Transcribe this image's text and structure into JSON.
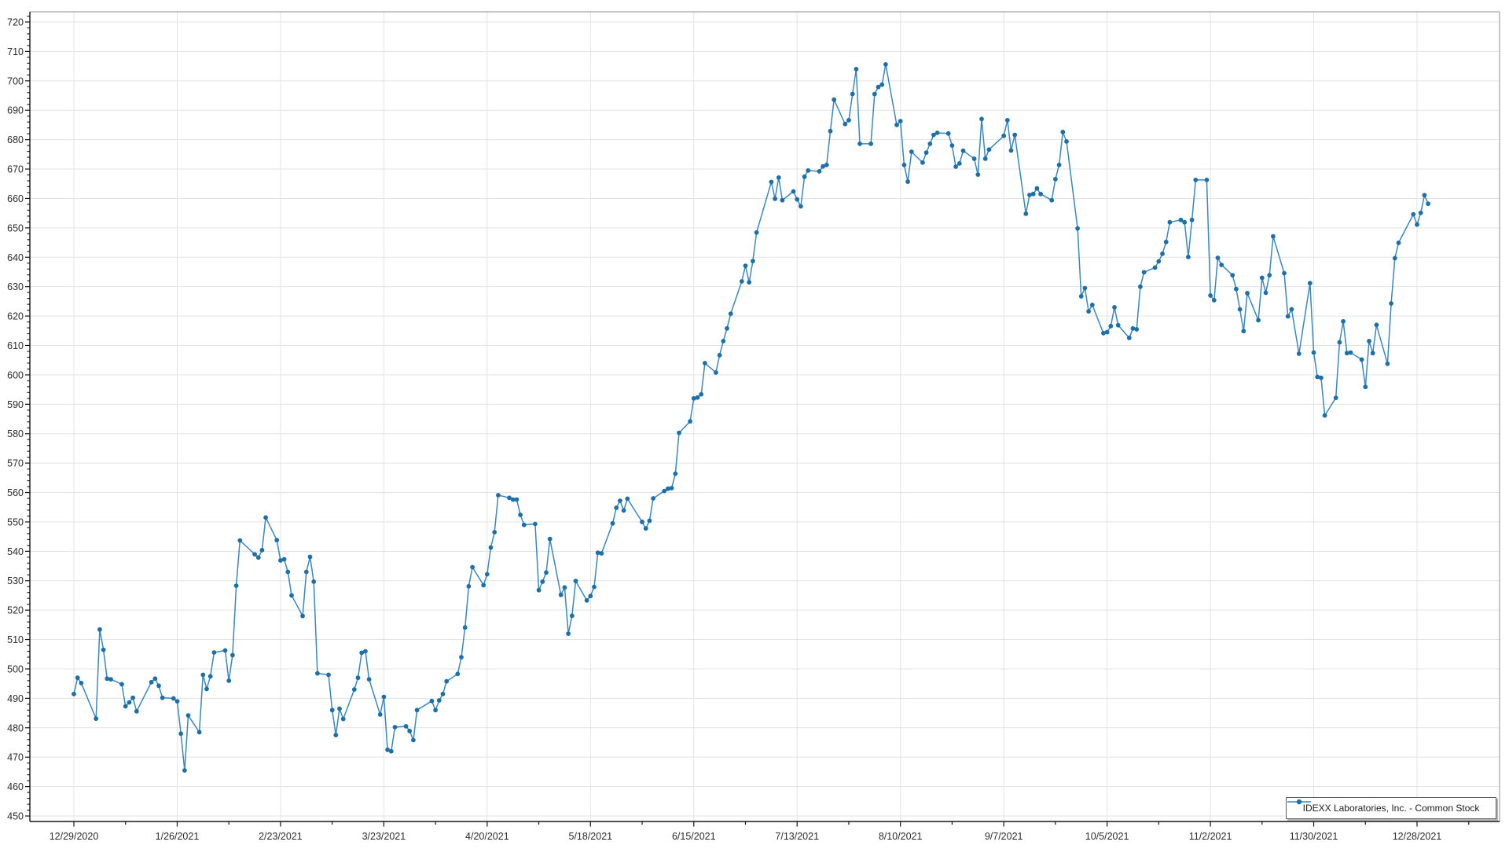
{
  "legend": {
    "label": "IDEXX Laboratories, Inc. - Common Stock"
  },
  "chart_data": {
    "type": "line",
    "title": "",
    "xlabel": "",
    "ylabel": "",
    "grid": true,
    "legend_position": "bottom-right",
    "colors": {
      "line": "#3a86c0",
      "marker": "#1d6fa8",
      "grid": "#e3e3e3",
      "axis": "#161616",
      "border": "#8f8f8f",
      "label": "#2a2a2a"
    },
    "x_axis": {
      "start_date": "12/29/2020",
      "days_per_major_tick": 28,
      "tick_labels": [
        "12/29/2020",
        "1/26/2021",
        "2/23/2021",
        "3/23/2021",
        "4/20/2021",
        "5/18/2021",
        "6/15/2021",
        "7/13/2021",
        "8/10/2021",
        "9/7/2021",
        "10/5/2021",
        "11/2/2021",
        "11/30/2021",
        "12/28/2021"
      ]
    },
    "y_axis": {
      "min": 450,
      "max": 720,
      "major_step": 10,
      "minor_step": 2
    },
    "series": [
      {
        "name": "IDEXX Laboratories, Inc. - Common Stock",
        "points": [
          [
            "12/29/2020",
            491.5
          ],
          [
            "12/30/2020",
            497.0
          ],
          [
            "12/31/2020",
            495.2
          ],
          [
            "1/4/2021",
            483.1
          ],
          [
            "1/5/2021",
            513.4
          ],
          [
            "1/6/2021",
            506.5
          ],
          [
            "1/7/2021",
            496.7
          ],
          [
            "1/8/2021",
            496.5
          ],
          [
            "1/11/2021",
            494.8
          ],
          [
            "1/12/2021",
            487.3
          ],
          [
            "1/13/2021",
            488.6
          ],
          [
            "1/14/2021",
            490.2
          ],
          [
            "1/15/2021",
            485.6
          ],
          [
            "1/19/2021",
            495.5
          ],
          [
            "1/20/2021",
            496.7
          ],
          [
            "1/21/2021",
            494.3
          ],
          [
            "1/22/2021",
            490.2
          ],
          [
            "1/25/2021",
            490.0
          ],
          [
            "1/26/2021",
            489.0
          ],
          [
            "1/27/2021",
            478.0
          ],
          [
            "1/28/2021",
            465.5
          ],
          [
            "1/29/2021",
            484.2
          ],
          [
            "2/1/2021",
            478.5
          ],
          [
            "2/2/2021",
            498.0
          ],
          [
            "2/3/2021",
            493.2
          ],
          [
            "2/4/2021",
            497.5
          ],
          [
            "2/5/2021",
            505.6
          ],
          [
            "2/8/2021",
            506.3
          ],
          [
            "2/9/2021",
            496.0
          ],
          [
            "2/10/2021",
            504.7
          ],
          [
            "2/11/2021",
            528.3
          ],
          [
            "2/12/2021",
            543.7
          ],
          [
            "2/16/2021",
            539.0
          ],
          [
            "2/17/2021",
            537.9
          ],
          [
            "2/18/2021",
            540.4
          ],
          [
            "2/19/2021",
            551.5
          ],
          [
            "2/22/2021",
            543.8
          ],
          [
            "2/23/2021",
            536.9
          ],
          [
            "2/24/2021",
            537.3
          ],
          [
            "2/25/2021",
            533.0
          ],
          [
            "2/26/2021",
            525.0
          ],
          [
            "3/1/2021",
            518.0
          ],
          [
            "3/2/2021",
            533.0
          ],
          [
            "3/3/2021",
            538.1
          ],
          [
            "3/4/2021",
            529.7
          ],
          [
            "3/5/2021",
            498.5
          ],
          [
            "3/8/2021",
            498.0
          ],
          [
            "3/9/2021",
            486.0
          ],
          [
            "3/10/2021",
            477.5
          ],
          [
            "3/11/2021",
            486.5
          ],
          [
            "3/12/2021",
            483.0
          ],
          [
            "3/15/2021",
            493.0
          ],
          [
            "3/16/2021",
            497.0
          ],
          [
            "3/17/2021",
            505.5
          ],
          [
            "3/18/2021",
            506.0
          ],
          [
            "3/19/2021",
            496.5
          ],
          [
            "3/22/2021",
            484.5
          ],
          [
            "3/23/2021",
            490.5
          ],
          [
            "3/24/2021",
            472.5
          ],
          [
            "3/25/2021",
            472.0
          ],
          [
            "3/26/2021",
            480.2
          ],
          [
            "3/29/2021",
            480.5
          ],
          [
            "3/30/2021",
            478.9
          ],
          [
            "3/31/2021",
            475.8
          ],
          [
            "4/1/2021",
            486.0
          ],
          [
            "4/5/2021",
            489.1
          ],
          [
            "4/6/2021",
            486.0
          ],
          [
            "4/7/2021",
            489.3
          ],
          [
            "4/8/2021",
            491.5
          ],
          [
            "4/9/2021",
            495.8
          ],
          [
            "4/12/2021",
            498.3
          ],
          [
            "4/13/2021",
            504.0
          ],
          [
            "4/14/2021",
            514.1
          ],
          [
            "4/15/2021",
            528.1
          ],
          [
            "4/16/2021",
            534.6
          ],
          [
            "4/19/2021",
            528.5
          ],
          [
            "4/20/2021",
            532.2
          ],
          [
            "4/21/2021",
            541.3
          ],
          [
            "4/22/2021",
            546.5
          ],
          [
            "4/23/2021",
            559.1
          ],
          [
            "4/26/2021",
            558.2
          ],
          [
            "4/27/2021",
            557.6
          ],
          [
            "4/28/2021",
            557.6
          ],
          [
            "4/29/2021",
            552.4
          ],
          [
            "4/30/2021",
            549.0
          ],
          [
            "5/3/2021",
            549.3
          ],
          [
            "5/4/2021",
            526.8
          ],
          [
            "5/5/2021",
            529.7
          ],
          [
            "5/6/2021",
            532.8
          ],
          [
            "5/7/2021",
            544.2
          ],
          [
            "5/10/2021",
            525.2
          ],
          [
            "5/11/2021",
            527.7
          ],
          [
            "5/12/2021",
            512.0
          ],
          [
            "5/13/2021",
            518.1
          ],
          [
            "5/14/2021",
            529.9
          ],
          [
            "5/17/2021",
            523.3
          ],
          [
            "5/18/2021",
            524.8
          ],
          [
            "5/19/2021",
            527.9
          ],
          [
            "5/20/2021",
            539.5
          ],
          [
            "5/21/2021",
            539.3
          ],
          [
            "5/24/2021",
            549.5
          ],
          [
            "5/25/2021",
            554.8
          ],
          [
            "5/26/2021",
            557.2
          ],
          [
            "5/27/2021",
            553.9
          ],
          [
            "5/28/2021",
            557.9
          ],
          [
            "6/1/2021",
            550.0
          ],
          [
            "6/2/2021",
            547.8
          ],
          [
            "6/3/2021",
            550.4
          ],
          [
            "6/4/2021",
            558.0
          ],
          [
            "6/7/2021",
            560.5
          ],
          [
            "6/8/2021",
            561.3
          ],
          [
            "6/9/2021",
            561.5
          ],
          [
            "6/10/2021",
            566.4
          ],
          [
            "6/11/2021",
            580.3
          ],
          [
            "6/14/2021",
            584.2
          ],
          [
            "6/15/2021",
            592.0
          ],
          [
            "6/16/2021",
            592.3
          ],
          [
            "6/17/2021",
            593.4
          ],
          [
            "6/18/2021",
            604.0
          ],
          [
            "6/21/2021",
            600.8
          ],
          [
            "6/22/2021",
            606.7
          ],
          [
            "6/23/2021",
            611.5
          ],
          [
            "6/24/2021",
            615.8
          ],
          [
            "6/25/2021",
            620.8
          ],
          [
            "6/28/2021",
            631.8
          ],
          [
            "6/29/2021",
            637.1
          ],
          [
            "6/30/2021",
            631.5
          ],
          [
            "7/1/2021",
            638.7
          ],
          [
            "7/2/2021",
            648.4
          ],
          [
            "7/6/2021",
            665.6
          ],
          [
            "7/7/2021",
            659.9
          ],
          [
            "7/8/2021",
            667.1
          ],
          [
            "7/9/2021",
            659.4
          ],
          [
            "7/12/2021",
            662.4
          ],
          [
            "7/13/2021",
            659.7
          ],
          [
            "7/14/2021",
            657.3
          ],
          [
            "7/15/2021",
            667.4
          ],
          [
            "7/16/2021",
            669.5
          ],
          [
            "7/19/2021",
            669.2
          ],
          [
            "7/20/2021",
            670.9
          ],
          [
            "7/21/2021",
            671.4
          ],
          [
            "7/22/2021",
            682.9
          ],
          [
            "7/23/2021",
            693.6
          ],
          [
            "7/26/2021",
            685.3
          ],
          [
            "7/27/2021",
            686.6
          ],
          [
            "7/28/2021",
            695.5
          ],
          [
            "7/29/2021",
            704.0
          ],
          [
            "7/30/2021",
            678.6
          ],
          [
            "8/2/2021",
            678.6
          ],
          [
            "8/3/2021",
            695.5
          ],
          [
            "8/4/2021",
            697.9
          ],
          [
            "8/5/2021",
            698.7
          ],
          [
            "8/6/2021",
            705.6
          ],
          [
            "8/9/2021",
            685.0
          ],
          [
            "8/10/2021",
            686.3
          ],
          [
            "8/11/2021",
            671.4
          ],
          [
            "8/12/2021",
            665.7
          ],
          [
            "8/13/2021",
            675.9
          ],
          [
            "8/16/2021",
            672.2
          ],
          [
            "8/17/2021",
            675.6
          ],
          [
            "8/18/2021",
            678.6
          ],
          [
            "8/19/2021",
            681.6
          ],
          [
            "8/20/2021",
            682.3
          ],
          [
            "8/23/2021",
            682.1
          ],
          [
            "8/24/2021",
            678.0
          ],
          [
            "8/25/2021",
            670.8
          ],
          [
            "8/26/2021",
            671.9
          ],
          [
            "8/27/2021",
            676.2
          ],
          [
            "8/30/2021",
            673.5
          ],
          [
            "8/31/2021",
            668.1
          ],
          [
            "9/1/2021",
            687.0
          ],
          [
            "9/2/2021",
            673.5
          ],
          [
            "9/3/2021",
            676.6
          ],
          [
            "9/7/2021",
            681.3
          ],
          [
            "9/8/2021",
            686.6
          ],
          [
            "9/9/2021",
            676.3
          ],
          [
            "9/10/2021",
            681.6
          ],
          [
            "9/13/2021",
            654.8
          ],
          [
            "9/14/2021",
            661.2
          ],
          [
            "9/15/2021",
            661.5
          ],
          [
            "9/16/2021",
            663.4
          ],
          [
            "9/17/2021",
            661.5
          ],
          [
            "9/20/2021",
            659.4
          ],
          [
            "9/21/2021",
            666.6
          ],
          [
            "9/22/2021",
            671.4
          ],
          [
            "9/23/2021",
            682.6
          ],
          [
            "9/24/2021",
            679.4
          ],
          [
            "9/27/2021",
            649.8
          ],
          [
            "9/28/2021",
            626.7
          ],
          [
            "9/29/2021",
            629.5
          ],
          [
            "9/30/2021",
            621.6
          ],
          [
            "10/1/2021",
            623.8
          ],
          [
            "10/4/2021",
            614.2
          ],
          [
            "10/5/2021",
            614.5
          ],
          [
            "10/6/2021",
            616.6
          ],
          [
            "10/7/2021",
            623.0
          ],
          [
            "10/8/2021",
            616.9
          ],
          [
            "10/11/2021",
            612.6
          ],
          [
            "10/12/2021",
            615.8
          ],
          [
            "10/13/2021",
            615.5
          ],
          [
            "10/14/2021",
            630.0
          ],
          [
            "10/15/2021",
            634.9
          ],
          [
            "10/18/2021",
            636.5
          ],
          [
            "10/19/2021",
            638.6
          ],
          [
            "10/20/2021",
            641.2
          ],
          [
            "10/21/2021",
            645.2
          ],
          [
            "10/22/2021",
            651.9
          ],
          [
            "10/25/2021",
            652.7
          ],
          [
            "10/26/2021",
            651.9
          ],
          [
            "10/27/2021",
            640.1
          ],
          [
            "10/28/2021",
            652.7
          ],
          [
            "10/29/2021",
            666.3
          ],
          [
            "11/1/2021",
            666.3
          ],
          [
            "11/2/2021",
            627.0
          ],
          [
            "11/3/2021",
            625.4
          ],
          [
            "11/4/2021",
            639.8
          ],
          [
            "11/5/2021",
            637.4
          ],
          [
            "11/8/2021",
            633.9
          ],
          [
            "11/9/2021",
            629.2
          ],
          [
            "11/10/2021",
            622.3
          ],
          [
            "11/11/2021",
            614.9
          ],
          [
            "11/12/2021",
            627.8
          ],
          [
            "11/15/2021",
            618.6
          ],
          [
            "11/16/2021",
            633.0
          ],
          [
            "11/17/2021",
            627.9
          ],
          [
            "11/18/2021",
            633.9
          ],
          [
            "11/19/2021",
            647.1
          ],
          [
            "11/22/2021",
            634.6
          ],
          [
            "11/23/2021",
            619.9
          ],
          [
            "11/24/2021",
            622.3
          ],
          [
            "11/26/2021",
            607.2
          ],
          [
            "11/29/2021",
            631.2
          ],
          [
            "11/30/2021",
            607.6
          ],
          [
            "12/1/2021",
            599.3
          ],
          [
            "12/2/2021",
            599.0
          ],
          [
            "12/3/2021",
            586.2
          ],
          [
            "12/6/2021",
            592.2
          ],
          [
            "12/7/2021",
            611.1
          ],
          [
            "12/8/2021",
            618.2
          ],
          [
            "12/9/2021",
            607.4
          ],
          [
            "12/10/2021",
            607.6
          ],
          [
            "12/13/2021",
            605.2
          ],
          [
            "12/14/2021",
            595.9
          ],
          [
            "12/15/2021",
            611.5
          ],
          [
            "12/16/2021",
            607.4
          ],
          [
            "12/17/2021",
            617.0
          ],
          [
            "12/20/2021",
            603.8
          ],
          [
            "12/21/2021",
            624.3
          ],
          [
            "12/22/2021",
            639.7
          ],
          [
            "12/23/2021",
            644.9
          ],
          [
            "12/27/2021",
            654.6
          ],
          [
            "12/28/2021",
            651.1
          ],
          [
            "12/29/2021",
            655.1
          ],
          [
            "12/30/2021",
            661.1
          ],
          [
            "12/31/2021",
            658.2
          ]
        ]
      }
    ]
  }
}
